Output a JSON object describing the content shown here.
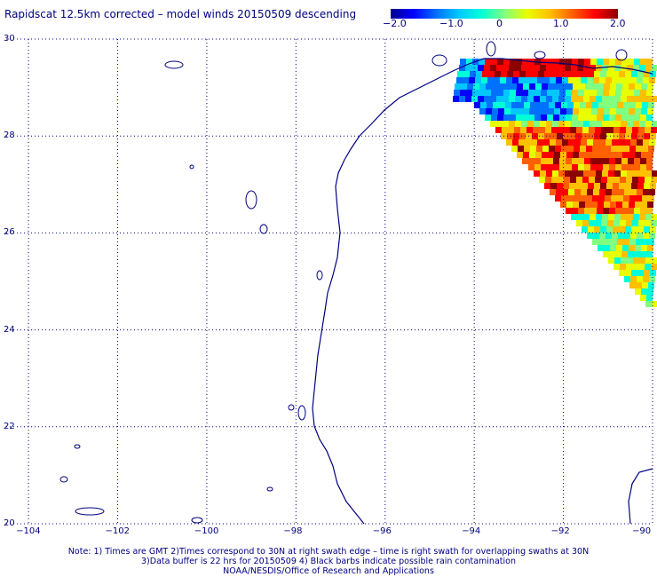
{
  "title": "Rapidscat 12.5km corrected – model winds 20150509 descending",
  "colorbar": {
    "ticks": [
      {
        "label": "−2.0",
        "value": -2.0
      },
      {
        "label": "−1.0",
        "value": -1.0
      },
      {
        "label": "0",
        "value": 0
      },
      {
        "label": "1.0",
        "value": 1.0
      },
      {
        "label": "2.0",
        "value": 2.0
      }
    ],
    "range": [
      -2.0,
      2.0
    ],
    "colors": [
      "#00008c",
      "#0000ff",
      "#0070ff",
      "#00c8ff",
      "#00ffd8",
      "#80ff80",
      "#e8ff00",
      "#ffc000",
      "#ff6000",
      "#ff0000",
      "#8c0000"
    ]
  },
  "map": {
    "lon_range": [
      -104.5,
      -90
    ],
    "lat_range": [
      20,
      30
    ],
    "lat_labels": [
      {
        "label": "30",
        "value": 30
      },
      {
        "label": "28",
        "value": 28
      },
      {
        "label": "26",
        "value": 26
      },
      {
        "label": "24",
        "value": 24
      },
      {
        "label": "22",
        "value": 22
      },
      {
        "label": "20",
        "value": 20
      }
    ],
    "lon_labels": [
      {
        "label": "−104",
        "value": -104
      },
      {
        "label": "−102",
        "value": -102
      },
      {
        "label": "−100",
        "value": -100
      },
      {
        "label": "−98",
        "value": -98
      },
      {
        "label": "−96",
        "value": -96
      },
      {
        "label": "−94",
        "value": -94
      },
      {
        "label": "−92",
        "value": -92
      },
      {
        "label": "−90",
        "value": -90
      }
    ],
    "coastline_color": "#000080",
    "grid_color": "#000080"
  },
  "notes": {
    "line1": "Note: 1) Times are GMT 2)Times correspond to 30N at right swath edge – time is right swath for overlapping swaths at 30N",
    "line2": "3)Data buffer is 22 hrs for 20150509 4) Black barbs indicate possible rain contamination",
    "line3": "NOAA/NESDIS/Office of Research and Applications"
  }
}
